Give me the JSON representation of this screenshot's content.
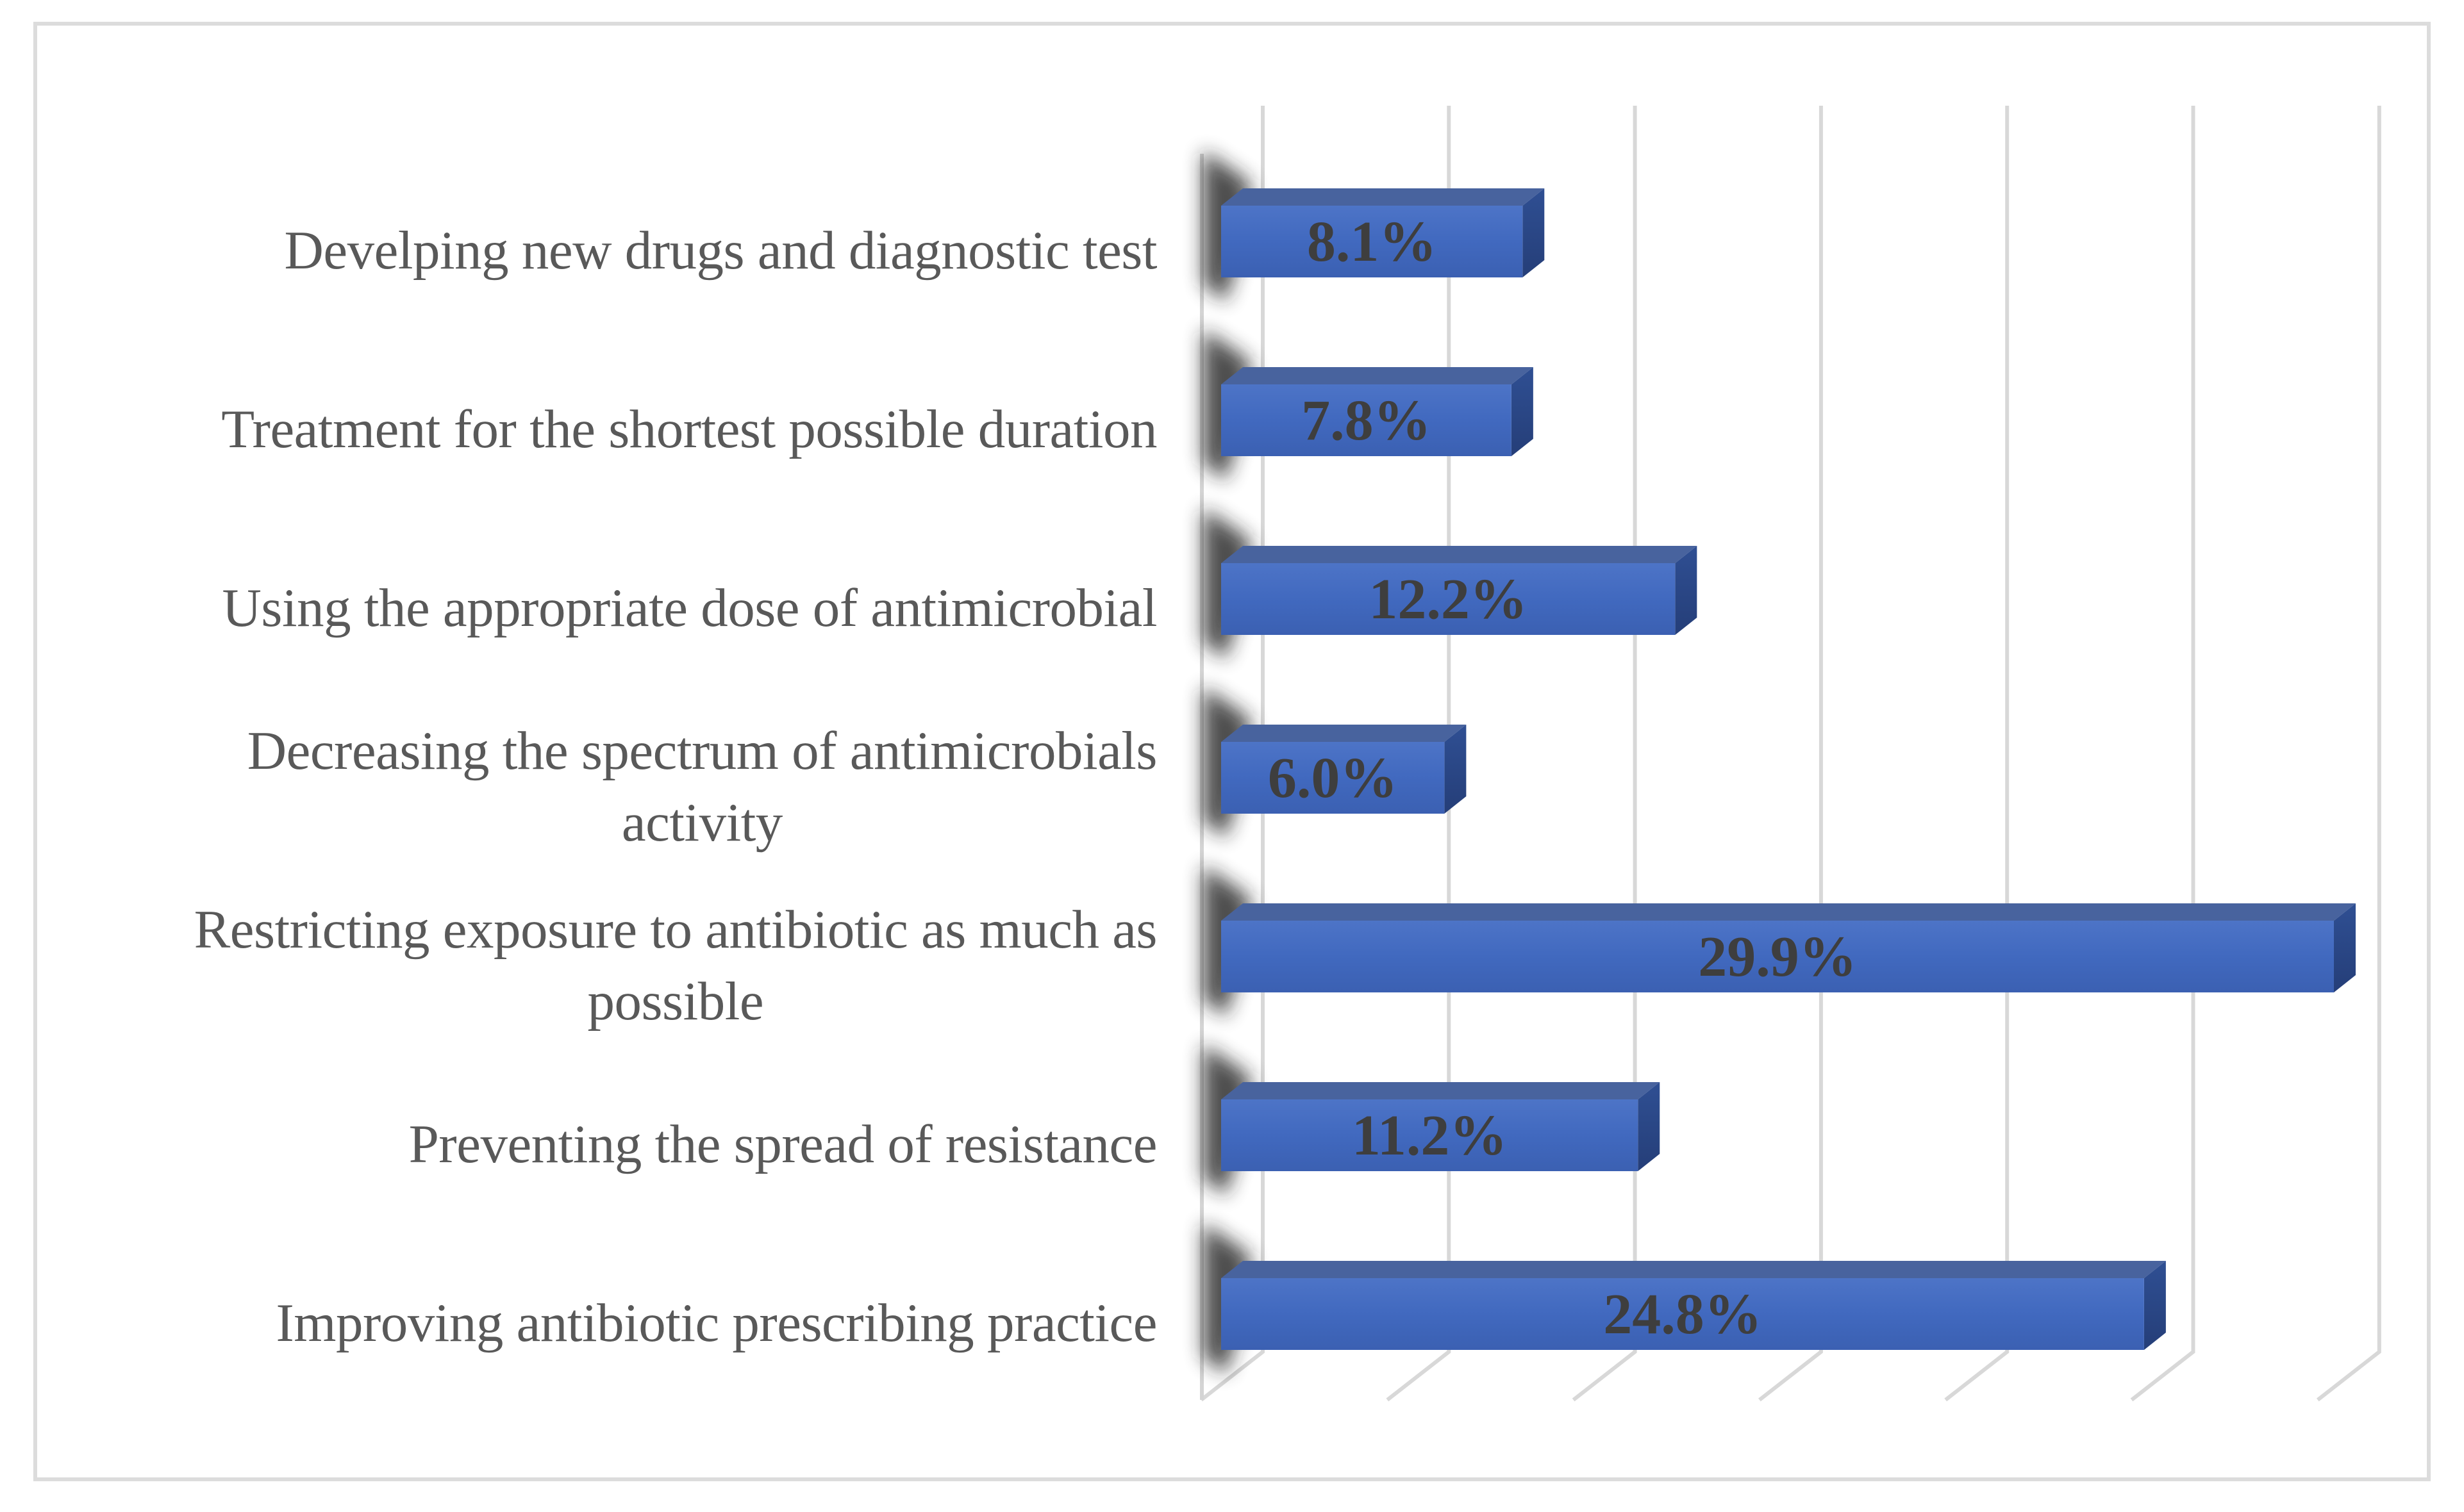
{
  "figure": {
    "background": "#ffffff",
    "border_color": "#dcdcdc"
  },
  "chart_data": {
    "type": "bar",
    "orientation": "horizontal",
    "style": "3d-clustered",
    "title": "",
    "xlabel": "",
    "ylabel": "",
    "categories": [
      "Develping new drugs and diagnostic test",
      "Treatment for the shortest possible duration",
      "Using the appropriate dose of antimicrobial",
      "Decreasing the spectrum of antimicrobials\nactivity",
      "Restricting exposure to antibiotic as much as\npossible",
      "Preventing the spread of resistance",
      "Improving antibiotic prescribing practice"
    ],
    "values": [
      8.1,
      7.8,
      12.2,
      6.0,
      29.9,
      11.2,
      24.8
    ],
    "value_labels": [
      "8.1%",
      "7.8%",
      "12.2%",
      "6.0%",
      "29.9%",
      "11.2%",
      "24.8%"
    ],
    "xlim": [
      0,
      30
    ],
    "grid": true,
    "gridline_step_pct": 5,
    "axis_tick_labels_visible": false,
    "legend_position": "none",
    "colors": {
      "bar_front_top": "#4d74c7",
      "bar_front_mid": "#4169bf",
      "bar_front_bottom": "#3b60b2",
      "bar_top_face": "#48639e",
      "bar_side_top": "#2f4f93",
      "bar_side_bottom": "#253e78",
      "value_text": "#3e3e3e",
      "category_text": "#595959",
      "gridline": "#d8d8d8",
      "wall_edge": "#d4d4d4",
      "shadow": "#242424"
    }
  }
}
